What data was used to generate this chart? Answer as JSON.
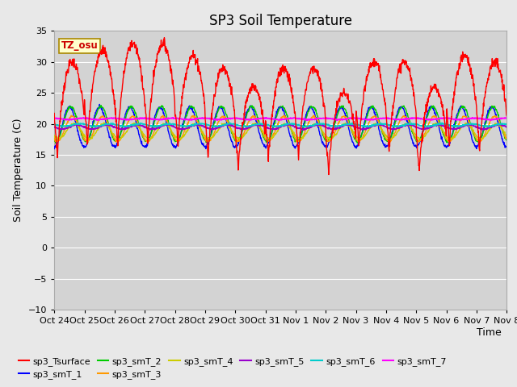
{
  "title": "SP3 Soil Temperature",
  "ylabel": "Soil Temperature (C)",
  "xlabel": "Time",
  "ylim": [
    -10,
    35
  ],
  "yticks": [
    -10,
    -5,
    0,
    5,
    10,
    15,
    20,
    25,
    30,
    35
  ],
  "xtick_labels": [
    "Oct 24",
    "Oct 25",
    "Oct 26",
    "Oct 27",
    "Oct 28",
    "Oct 29",
    "Oct 30",
    "Oct 31",
    "Nov 1",
    "Nov 2",
    "Nov 3",
    "Nov 4",
    "Nov 5",
    "Nov 6",
    "Nov 7",
    "Nov 8"
  ],
  "tz_label": "TZ_osu",
  "series_colors": {
    "sp3_Tsurface": "#FF0000",
    "sp3_smT_1": "#0000FF",
    "sp3_smT_2": "#00CC00",
    "sp3_smT_3": "#FF9900",
    "sp3_smT_4": "#CCCC00",
    "sp3_smT_5": "#9900CC",
    "sp3_smT_6": "#00CCCC",
    "sp3_smT_7": "#FF00FF"
  },
  "fig_bg_color": "#E8E8E8",
  "plot_bg_color": "#D3D3D3",
  "grid_color": "#FFFFFF",
  "title_fontsize": 12,
  "label_fontsize": 9,
  "tick_fontsize": 8
}
